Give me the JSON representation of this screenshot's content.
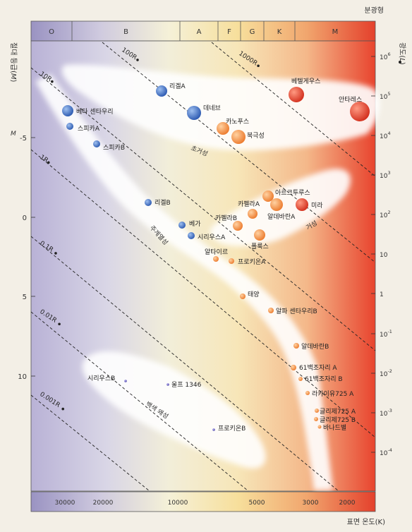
{
  "header": {
    "spectral_class_title": "분광형",
    "temperature_title": "표면 온도(K)"
  },
  "axes": {
    "left_label_a": "절대 등급(",
    "left_label_b": "M",
    "left_label_c": ")",
    "left_label_sym": "M",
    "right_label_a": "광도(",
    "right_label_b": "L",
    "right_label_c": ")",
    "magnitude_ticks": [
      "-5",
      "0",
      "5",
      "10"
    ],
    "luminosity_ticks": [
      {
        "base": "10",
        "exp": "6"
      },
      {
        "base": "10",
        "exp": "5"
      },
      {
        "base": "10",
        "exp": "4"
      },
      {
        "base": "10",
        "exp": "3"
      },
      {
        "base": "10",
        "exp": "2"
      },
      {
        "base": "10",
        "exp": ""
      },
      {
        "base": "1",
        "exp": ""
      },
      {
        "base": "10",
        "exp": "-1"
      },
      {
        "base": "10",
        "exp": "-2"
      },
      {
        "base": "10",
        "exp": "-3"
      },
      {
        "base": "10",
        "exp": "-4"
      }
    ],
    "temperature_ticks": [
      "30000",
      "20000",
      "10000",
      "5000",
      "3000",
      "2000"
    ]
  },
  "spectral_classes": [
    "O",
    "B",
    "A",
    "F",
    "G",
    "K",
    "M"
  ],
  "radius_lines": [
    {
      "label": "1000R"
    },
    {
      "label": "100R"
    },
    {
      "label": "10R"
    },
    {
      "label": "1R"
    },
    {
      "label": "0.1R"
    },
    {
      "label": "0.01R"
    },
    {
      "label": "0.001R"
    }
  ],
  "regions": [
    "초거성",
    "거성",
    "주계열성",
    "백색 왜성"
  ],
  "stars": [
    {
      "name": "리겔A",
      "color": "#3d6fc4"
    },
    {
      "name": "데네브",
      "color": "#3d6fc4"
    },
    {
      "name": "베텔게우스",
      "color": "#e0452f"
    },
    {
      "name": "안타레스",
      "color": "#e0452f"
    },
    {
      "name": "베타 센타우리",
      "color": "#3d6fc4"
    },
    {
      "name": "스피카A",
      "color": "#3d6fc4"
    },
    {
      "name": "스피카B",
      "color": "#3d6fc4"
    },
    {
      "name": "카노푸스",
      "color": "#f08a3a"
    },
    {
      "name": "북극성",
      "color": "#f08a3a"
    },
    {
      "name": "아르크투루스",
      "color": "#f08a3a"
    },
    {
      "name": "미라",
      "color": "#e0452f"
    },
    {
      "name": "카펠라A",
      "color": "#f08a3a"
    },
    {
      "name": "알데바란A",
      "color": "#f08a3a"
    },
    {
      "name": "카펠라B",
      "color": "#f08a3a"
    },
    {
      "name": "폴룩스",
      "color": "#f08a3a"
    },
    {
      "name": "리겔B",
      "color": "#3d6fc4"
    },
    {
      "name": "베가",
      "color": "#3d6fc4"
    },
    {
      "name": "시리우스A",
      "color": "#3d6fc4"
    },
    {
      "name": "알타이르",
      "color": "#f08a3a"
    },
    {
      "name": "프로키온A",
      "color": "#f08a3a"
    },
    {
      "name": "태양",
      "color": "#f08a3a"
    },
    {
      "name": "알파 센타우리B",
      "color": "#f08a3a"
    },
    {
      "name": "알데바란B",
      "color": "#f08a3a"
    },
    {
      "name": "61백조자리 A",
      "color": "#f08a3a"
    },
    {
      "name": "61백조자리 B",
      "color": "#f08a3a"
    },
    {
      "name": "라카이유725 A",
      "color": "#f08a3a"
    },
    {
      "name": "글리제725 A",
      "color": "#f08a3a"
    },
    {
      "name": "글리제725 B",
      "color": "#f08a3a"
    },
    {
      "name": "바나드별",
      "color": "#f08a3a"
    },
    {
      "name": "시리우스B",
      "color": "#6a63b8"
    },
    {
      "name": "울프 1346",
      "color": "#6a63b8"
    },
    {
      "name": "프로키온B",
      "color": "#6a63b8"
    }
  ]
}
